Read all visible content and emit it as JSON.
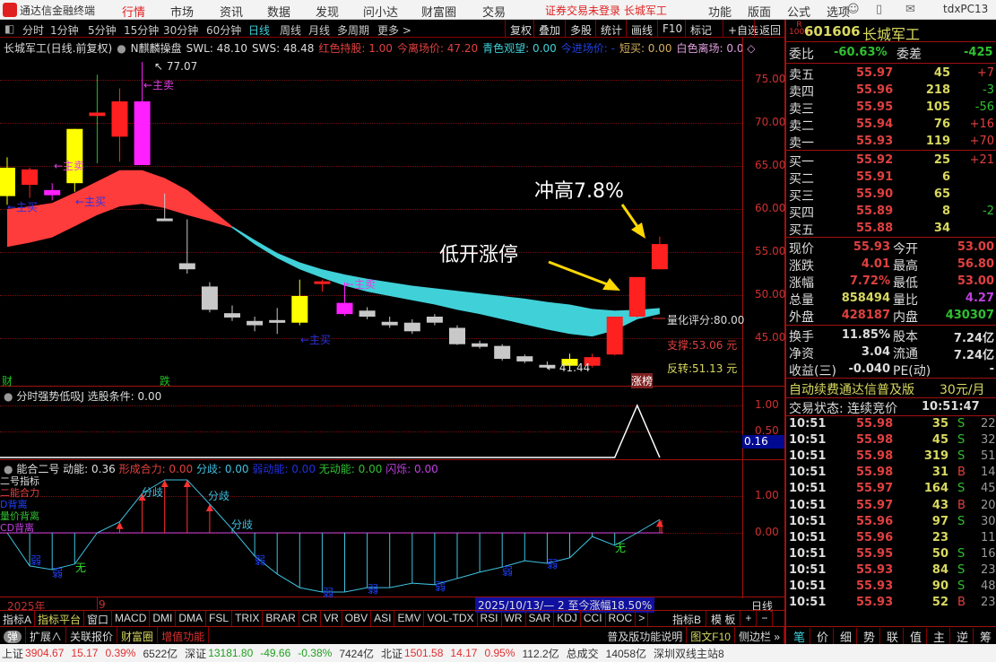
{
  "app": {
    "title": "通达信金融终端",
    "menu": [
      "行情",
      "市场",
      "资讯",
      "数据",
      "发现",
      "问小达",
      "财富圈",
      "交易"
    ],
    "active_menu": "行情",
    "notice": "证券交易未登录  长城军工",
    "right_menu": [
      "功能",
      "版面",
      "公式",
      "选项"
    ],
    "user": "tdxPC13"
  },
  "periods": [
    "分时",
    "1分钟",
    "5分钟",
    "15分钟",
    "30分钟",
    "60分钟",
    "日线",
    "周线",
    "月线",
    "多周期",
    "更多 >"
  ],
  "active_period": "日线",
  "tools": [
    "复权",
    "叠加",
    "多股",
    "统计",
    "画线",
    "F10",
    "标记",
    "+自选",
    "返回"
  ],
  "chart_header": {
    "title": "长城军工(日线.前复权)",
    "indicator": "N麒麟操盘",
    "swl": "SWL: 48.10",
    "sws": "SWS: 48.48",
    "red_hold": "红色持股: 1.00",
    "entry_price": "今离场价: 47.20",
    "cyan_watch": "青色观望: 0.00",
    "entry": "今进场价: -",
    "short_buy": "短买: 0.00",
    "white_exit": "白色离场: 0.0 ◇"
  },
  "price_axis": [
    "75.00",
    "70.00",
    "65.00",
    "60.00",
    "55.00",
    "50.00",
    "45.00"
  ],
  "annotations": {
    "high_label": "77.07",
    "low_label": "41.44",
    "main_sell": "←主卖",
    "main_buy": "←主买",
    "surge": "冲高7.8%",
    "low_open_limit": "低开涨停",
    "score": "量化评分:80.00",
    "support": "支撑:53.06 元",
    "reversal": "反转:51.13 元",
    "limit_tag": "涨榜",
    "cai": "财",
    "die": "跌"
  },
  "colors": {
    "up": "#ff2020",
    "yellow": "#ffff00",
    "magenta": "#ff20ff",
    "gray": "#c8c8c8",
    "ribbon_red": "#ff3c3c",
    "ribbon_cyan": "#40d0d8"
  },
  "candles": [
    {
      "o": 61.5,
      "h": 66,
      "l": 60.5,
      "c": 64.8,
      "k": "yellow"
    },
    {
      "o": 64.6,
      "h": 64.8,
      "l": 61.3,
      "c": 62.8,
      "k": "red"
    },
    {
      "o": 62.2,
      "h": 63,
      "l": 61,
      "c": 61.6,
      "k": "magenta"
    },
    {
      "o": 63,
      "h": 69.3,
      "l": 62,
      "c": 69.3,
      "k": "yellow"
    },
    {
      "o": 71.2,
      "h": 75.6,
      "l": 65.3,
      "c": 70.8,
      "k": "red"
    },
    {
      "o": 68.4,
      "h": 74,
      "l": 65.5,
      "c": 72.5,
      "k": "red"
    },
    {
      "o": 72.5,
      "h": 77.07,
      "l": 65.1,
      "c": 65.1,
      "k": "magenta"
    },
    {
      "o": 58.9,
      "h": 61.8,
      "l": 58.8,
      "c": 58.8,
      "k": "gray"
    },
    {
      "o": 53.7,
      "h": 58.8,
      "l": 52.5,
      "c": 53,
      "k": "gray"
    },
    {
      "o": 51,
      "h": 51.5,
      "l": 48,
      "c": 48.3,
      "k": "gray"
    },
    {
      "o": 47.9,
      "h": 48.8,
      "l": 47,
      "c": 47.4,
      "k": "gray"
    },
    {
      "o": 47,
      "h": 47.5,
      "l": 45.8,
      "c": 46.5,
      "k": "gray"
    },
    {
      "o": 47.1,
      "h": 48.5,
      "l": 45.5,
      "c": 46.9,
      "k": "gray"
    },
    {
      "o": 46.8,
      "h": 51.8,
      "l": 46.5,
      "c": 49.9,
      "k": "yellow"
    },
    {
      "o": 51.4,
      "h": 51.8,
      "l": 50.4,
      "c": 51.6,
      "k": "red"
    },
    {
      "o": 49.1,
      "h": 51.5,
      "l": 47.6,
      "c": 47.8,
      "k": "magenta"
    },
    {
      "o": 48.2,
      "h": 48.6,
      "l": 47.2,
      "c": 47.5,
      "k": "gray"
    },
    {
      "o": 46.9,
      "h": 47.5,
      "l": 46.2,
      "c": 46.5,
      "k": "gray"
    },
    {
      "o": 46.8,
      "h": 47.2,
      "l": 45.5,
      "c": 45.8,
      "k": "gray"
    },
    {
      "o": 47.5,
      "h": 47.8,
      "l": 46.5,
      "c": 46.8,
      "k": "gray"
    },
    {
      "o": 46.2,
      "h": 46.5,
      "l": 44.2,
      "c": 44.3,
      "k": "gray"
    },
    {
      "o": 44.4,
      "h": 44.7,
      "l": 43.8,
      "c": 44,
      "k": "gray"
    },
    {
      "o": 44.1,
      "h": 44.3,
      "l": 42.4,
      "c": 42.6,
      "k": "gray"
    },
    {
      "o": 42.9,
      "h": 43.1,
      "l": 42.1,
      "c": 42.3,
      "k": "gray"
    },
    {
      "o": 41.9,
      "h": 42.3,
      "l": 41.44,
      "c": 41.8,
      "k": "gray"
    },
    {
      "o": 41.8,
      "h": 43.2,
      "l": 41.6,
      "c": 42.6,
      "k": "yellow"
    },
    {
      "o": 41.8,
      "h": 43.2,
      "l": 41.6,
      "c": 42.8,
      "k": "red"
    },
    {
      "o": 43.1,
      "h": 47.5,
      "l": 43,
      "c": 47.5,
      "k": "red"
    },
    {
      "o": 47.5,
      "h": 52.1,
      "l": 47.4,
      "c": 52.1,
      "k": "red"
    },
    {
      "o": 53,
      "h": 56.8,
      "l": 53,
      "c": 55.93,
      "k": "red"
    }
  ],
  "ribbon_upper": [
    60.0,
    60.3,
    60.7,
    61.9,
    63.2,
    64.5,
    64.5,
    63.6,
    62.2,
    60.1,
    58.0,
    56.4,
    54.9,
    53.8,
    53.0,
    52.4,
    51.9,
    51.5,
    51.1,
    50.8,
    50.5,
    50.2,
    49.9,
    49.6,
    49.2,
    48.9,
    48.4,
    48.2,
    48.3,
    48.5
  ],
  "ribbon_lower": [
    55.6,
    56.1,
    56.7,
    58.0,
    59.3,
    60.3,
    60.6,
    60.1,
    59.3,
    58.6,
    57.8,
    55.9,
    54.3,
    53.0,
    52.0,
    51.1,
    50.4,
    49.9,
    49.4,
    48.9,
    48.3,
    47.8,
    47.2,
    46.6,
    46.0,
    45.5,
    45.2,
    45.9,
    47.2,
    47.8
  ],
  "panel2": {
    "title": "分时强势低吸J  选股条件: 0.00",
    "axis": [
      "1.00",
      "0.50"
    ],
    "value": "0.16",
    "values": [
      0,
      0,
      0,
      0,
      0,
      0,
      0,
      0,
      0,
      0,
      0,
      0,
      0,
      0,
      0,
      0,
      0,
      0,
      0,
      0,
      0,
      0,
      0,
      0,
      0,
      0,
      0,
      0,
      1,
      0
    ]
  },
  "panel3": {
    "name": "能合二号",
    "dongneng": "动能: 0.36",
    "hecheng": "形成合力: 0.00",
    "fenqi": "分歧: 0.00",
    "ruo": "弱动能: 0.00",
    "wu": "无动能: 0.00",
    "shan": "闪烁: 0.00",
    "legend": [
      "二号指标",
      "二能合力",
      "D背离",
      "量价背离",
      "CD背离"
    ],
    "axis": [
      "1.00",
      "0.00"
    ],
    "fenqi_tag": "分歧",
    "ruo_tag": "弱",
    "wu_tag": "无",
    "values": [
      0,
      -0.9,
      -1.0,
      -0.85,
      0,
      0.3,
      1.07,
      1.44,
      1.44,
      0.78,
      0.1,
      -0.63,
      -1.12,
      -1.49,
      -1.61,
      -1.61,
      -1.49,
      -1.49,
      -1.37,
      -1.41,
      -1.24,
      -1.07,
      -0.93,
      -0.76,
      -0.83,
      -0.68,
      -0.1,
      -0.34,
      0,
      0.36
    ]
  },
  "time_axis": {
    "year": "2025年",
    "month": "9",
    "range": "2025/10/13/— 2 至今涨幅18.50%",
    "period": "日线"
  },
  "indicator_tabs": [
    "指标A",
    "指标平台",
    "窗口",
    "MACD",
    "DMI",
    "DMA",
    "FSL",
    "TRIX",
    "BRAR",
    "CR",
    "VR",
    "OBV",
    "ASI",
    "EMV",
    "VOL-TDX",
    "RSI",
    "WR",
    "SAR",
    "KDJ",
    "CCI",
    "ROC",
    ">"
  ],
  "indicator_right": [
    "指标B",
    "模 板",
    "+",
    "−"
  ],
  "row2": {
    "toggle": "弹",
    "ext": "扩展∧",
    "rel": "关联报价",
    "wealth": "财富圈",
    "value_add": "增值功能",
    "help": "普及版功能说明",
    "f10": "图文F10",
    "side": "侧边栏 »"
  },
  "stock": {
    "code": "601606",
    "name": "长城军工",
    "badge": "R",
    "badge_sub": "1000"
  },
  "weibi": {
    "label": "委比",
    "value": "-60.63%",
    "diff_label": "委差",
    "diff": "-425"
  },
  "asks": [
    {
      "l": "卖五",
      "p": "55.97",
      "v": "45",
      "d": "+7"
    },
    {
      "l": "卖四",
      "p": "55.96",
      "v": "218",
      "d": "-3"
    },
    {
      "l": "卖三",
      "p": "55.95",
      "v": "105",
      "d": "-56"
    },
    {
      "l": "卖二",
      "p": "55.94",
      "v": "76",
      "d": "+16"
    },
    {
      "l": "卖一",
      "p": "55.93",
      "v": "119",
      "d": "+70"
    }
  ],
  "bids": [
    {
      "l": "买一",
      "p": "55.92",
      "v": "25",
      "d": "+21"
    },
    {
      "l": "买二",
      "p": "55.91",
      "v": "6",
      "d": ""
    },
    {
      "l": "买三",
      "p": "55.90",
      "v": "65",
      "d": ""
    },
    {
      "l": "买四",
      "p": "55.89",
      "v": "8",
      "d": "-2"
    },
    {
      "l": "买五",
      "p": "55.88",
      "v": "34",
      "d": ""
    }
  ],
  "quote": [
    [
      "现价",
      "55.93",
      "今开",
      "53.00"
    ],
    [
      "涨跌",
      "4.01",
      "最高",
      "56.80"
    ],
    [
      "涨幅",
      "7.72%",
      "最低",
      "53.00"
    ],
    [
      "总量",
      "858494",
      "量比",
      "4.27"
    ],
    [
      "外盘",
      "428187",
      "内盘",
      "430307"
    ]
  ],
  "fund": [
    [
      "换手",
      "11.85%",
      "股本",
      "7.24亿"
    ],
    [
      "净资",
      "3.04",
      "流通",
      "7.24亿"
    ],
    [
      "收益(三)",
      "-0.040",
      "PE(动)",
      "-"
    ]
  ],
  "promo": {
    "text": "自动续费通达信普及版",
    "price": "30元/月"
  },
  "trade_state": {
    "label": "交易状态: 连续竞价",
    "time": "10:51:47"
  },
  "ticks": [
    [
      "10:51",
      "55.98",
      "35",
      "S",
      "22"
    ],
    [
      "10:51",
      "55.98",
      "45",
      "S",
      "32"
    ],
    [
      "10:51",
      "55.98",
      "319",
      "S",
      "51"
    ],
    [
      "10:51",
      "55.98",
      "31",
      "B",
      "14"
    ],
    [
      "10:51",
      "55.97",
      "164",
      "S",
      "45"
    ],
    [
      "10:51",
      "55.97",
      "43",
      "B",
      "20"
    ],
    [
      "10:51",
      "55.96",
      "97",
      "S",
      "30"
    ],
    [
      "10:51",
      "55.96",
      "23",
      "",
      "11"
    ],
    [
      "10:51",
      "55.95",
      "50",
      "S",
      "16"
    ],
    [
      "10:51",
      "55.93",
      "84",
      "S",
      "23"
    ],
    [
      "10:51",
      "55.93",
      "90",
      "S",
      "48"
    ],
    [
      "10:51",
      "55.93",
      "52",
      "B",
      "23"
    ]
  ],
  "right_tabs": [
    "笔",
    "价",
    "细",
    "势",
    "联",
    "值",
    "主",
    "逆",
    "筹"
  ],
  "status": {
    "sh_label": "上证",
    "sh": "3904.67",
    "sh_chg": "15.17",
    "sh_pct": "0.39%",
    "sh_amt": "6522亿",
    "sz_label": "深证",
    "sz": "13181.80",
    "sz_chg": "-49.66",
    "sz_pct": "-0.38%",
    "sz_amt": "7424亿",
    "bj_label": "北证",
    "bj": "1501.58",
    "bj_chg": "14.17",
    "bj_pct": "0.95%",
    "bj_amt": "112.2亿",
    "total_label": "总成交",
    "total": "14058亿",
    "server": "深圳双线主站8"
  }
}
